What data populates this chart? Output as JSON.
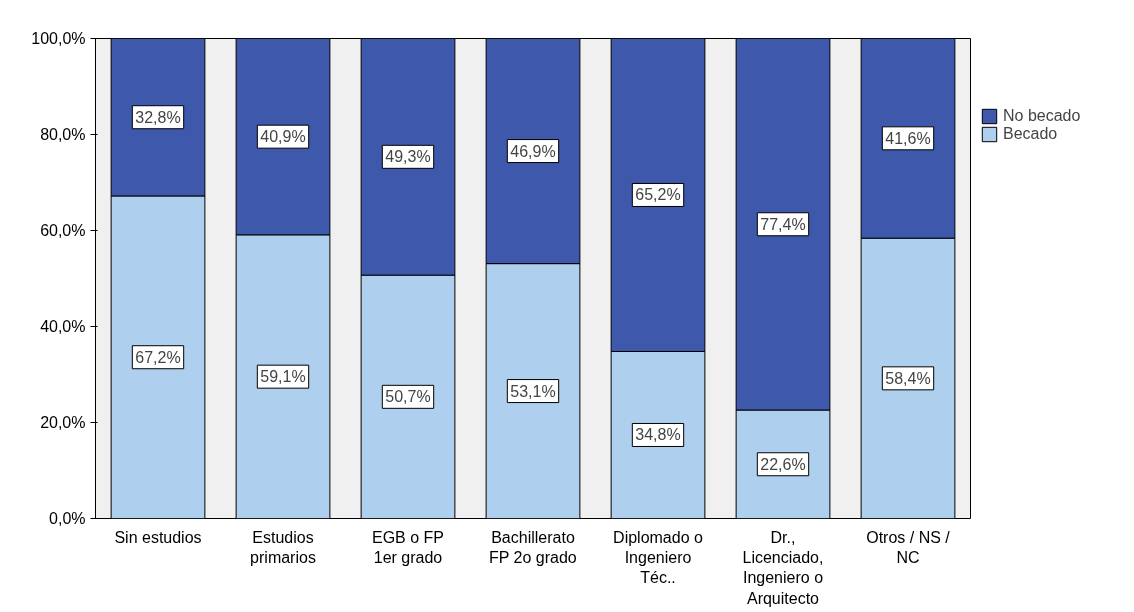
{
  "chart_data": {
    "type": "bar",
    "stacked": true,
    "categories": [
      "Sin estudios",
      "Estudios\nprimarios",
      "EGB o FP\n1er grado",
      "Bachillerato\nFP 2o grado",
      "Diplomado o\nIngeniero\nTéc..",
      "Dr.,\nLicenciado,\nIngeniero o\nArquitecto",
      "Otros / NS /\nNC"
    ],
    "series": [
      {
        "name": "Becado",
        "color": "#aed0ee",
        "values": [
          67.2,
          59.1,
          50.7,
          53.1,
          34.8,
          22.6,
          58.4
        ],
        "value_labels": [
          "67,2%",
          "59,1%",
          "50,7%",
          "53,1%",
          "34,8%",
          "22,6%",
          "58,4%"
        ]
      },
      {
        "name": "No becado",
        "color": "#3e58ac",
        "values": [
          32.8,
          40.9,
          49.3,
          46.9,
          65.2,
          77.4,
          41.6
        ],
        "value_labels": [
          "32,8%",
          "40,9%",
          "49,3%",
          "46,9%",
          "65,2%",
          "77,4%",
          "41,6%"
        ]
      }
    ],
    "ylim": [
      0,
      100
    ],
    "yticks": [
      {
        "value": 0,
        "label": "0,0%"
      },
      {
        "value": 20,
        "label": "20,0%"
      },
      {
        "value": 40,
        "label": "40,0%"
      },
      {
        "value": 60,
        "label": "60,0%"
      },
      {
        "value": 80,
        "label": "80,0%"
      },
      {
        "value": 100,
        "label": "100,0%"
      }
    ],
    "grid": false,
    "legend": "right"
  }
}
